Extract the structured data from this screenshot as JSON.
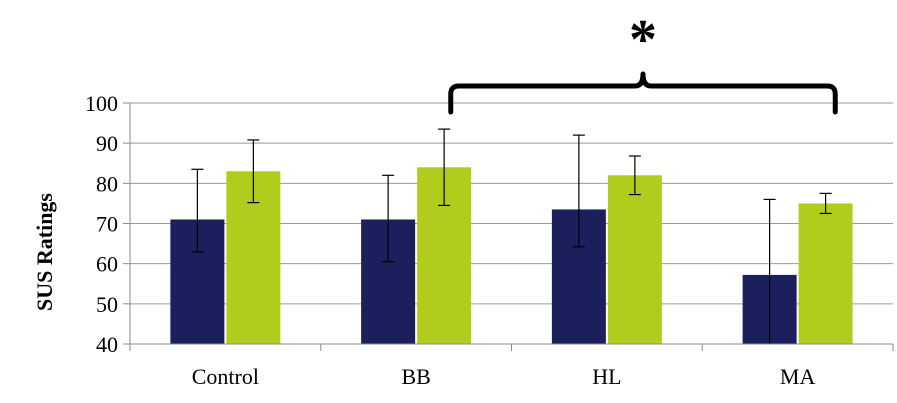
{
  "chart_data": {
    "type": "bar",
    "title": "",
    "xlabel": "",
    "ylabel": "SUS Ratings",
    "categories": [
      "Control",
      "BB",
      "HL",
      "MA"
    ],
    "ylim": [
      40,
      100
    ],
    "yticks": [
      40,
      50,
      60,
      70,
      80,
      90,
      100
    ],
    "grid": true,
    "legend": "none",
    "series": [
      {
        "color": "#1b1f5c",
        "values": [
          71,
          71,
          73.5,
          57.2
        ],
        "error_low": [
          62.9,
          60.5,
          64.2,
          40
        ],
        "error_high": [
          83.5,
          82,
          92,
          76
        ]
      },
      {
        "color": "#b2cc1e",
        "values": [
          83,
          84,
          82,
          75
        ],
        "error_low": [
          75.2,
          74.5,
          77.2,
          72.5
        ],
        "error_high": [
          90.8,
          93.5,
          86.8,
          77.5
        ]
      }
    ],
    "annotations": [
      {
        "text": "*",
        "type": "significance-bracket",
        "from_category": "BB",
        "to_category": "MA"
      }
    ]
  },
  "colors": {
    "grid": "#9a9a9a",
    "axis": "#8a8a8a",
    "error_bar": "#000000",
    "bracket": "#000000"
  }
}
